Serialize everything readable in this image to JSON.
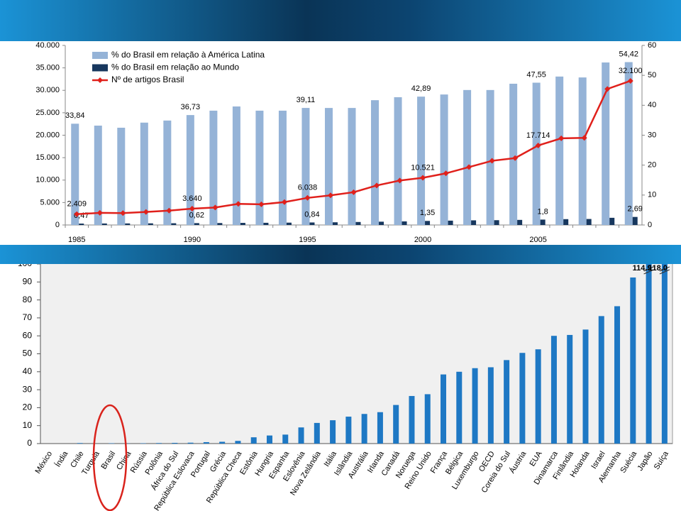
{
  "chart_data": [
    {
      "type": "bar_line",
      "categories": [
        "1985",
        null,
        null,
        null,
        null,
        "1990",
        null,
        null,
        null,
        null,
        "1995",
        null,
        null,
        null,
        null,
        "2000",
        null,
        null,
        null,
        null,
        "2005",
        null,
        null,
        null,
        null
      ],
      "series": [
        {
          "name": "% do Brasil em relação à América Latina",
          "type": "bar",
          "axis": "y2",
          "color": "#95b3d7",
          "values": [
            33.84,
            33.2,
            32.5,
            34.2,
            34.9,
            36.73,
            38.2,
            39.6,
            38.2,
            38.2,
            39.11,
            39.1,
            39.1,
            41.7,
            42.7,
            42.89,
            43.6,
            45.1,
            45.1,
            47.2,
            47.55,
            49.6,
            49.3,
            54.3,
            54.42
          ],
          "value_labels": [
            "33,84",
            null,
            null,
            null,
            null,
            "36,73",
            null,
            null,
            null,
            null,
            "39,11",
            null,
            null,
            null,
            null,
            "42,89",
            null,
            null,
            null,
            null,
            "47,55",
            null,
            null,
            null,
            "54,42"
          ]
        },
        {
          "name": "% do Brasil em relação ao Mundo",
          "type": "bar",
          "axis": "y2",
          "color": "#17375e",
          "values": [
            0.47,
            0.5,
            0.52,
            0.55,
            0.58,
            0.62,
            0.65,
            0.7,
            0.73,
            0.78,
            0.84,
            0.9,
            1.0,
            1.1,
            1.2,
            1.35,
            1.45,
            1.55,
            1.6,
            1.7,
            1.8,
            1.95,
            2.0,
            2.4,
            2.69
          ],
          "value_labels": [
            "0,47",
            null,
            null,
            null,
            null,
            "0,62",
            null,
            null,
            null,
            null,
            "0,84",
            null,
            null,
            null,
            null,
            "1,35",
            null,
            null,
            null,
            null,
            "1,8",
            null,
            null,
            null,
            "2,69"
          ]
        },
        {
          "name": "Nº de artigos Brasil",
          "type": "line",
          "axis": "y",
          "color": "#e0201b",
          "values": [
            2409,
            2700,
            2650,
            2900,
            3200,
            3640,
            3900,
            4700,
            4600,
            5100,
            6038,
            6600,
            7300,
            8800,
            9900,
            10521,
            11500,
            12900,
            14300,
            14900,
            17714,
            19300,
            19400,
            30300,
            32100
          ],
          "value_labels": [
            "2.409",
            null,
            null,
            null,
            null,
            "3.640",
            null,
            null,
            null,
            null,
            "6.038",
            null,
            null,
            null,
            null,
            "10.521",
            null,
            null,
            null,
            null,
            "17.714",
            null,
            null,
            null,
            "32.100"
          ]
        }
      ],
      "ylim": [
        0,
        40000
      ],
      "yticks": [
        0,
        {
          "value": 5000,
          "label": "5.000"
        },
        {
          "value": 10000,
          "label": "10.000"
        },
        {
          "value": 15000,
          "label": "15.000"
        },
        {
          "value": 20000,
          "label": "20.000"
        },
        {
          "value": 25000,
          "label": "25.000"
        },
        {
          "value": 30000,
          "label": "30.000"
        },
        {
          "value": 35000,
          "label": "35.000"
        },
        {
          "value": 40000,
          "label": "40.000"
        }
      ],
      "y2lim": [
        0,
        60
      ],
      "y2ticks": [
        0,
        10,
        20,
        30,
        40,
        50,
        60
      ],
      "legend": "upper left"
    },
    {
      "type": "bar",
      "categories": [
        "México",
        "Índia",
        "Chile",
        "Turquia",
        "Brasil",
        "China",
        "Rússia",
        "Polônia",
        "África do Sul",
        "República Eslovaca",
        "Portugal",
        "Grécia",
        "República Checa",
        "Estônia",
        "Hungria",
        "Espanha",
        "Eslovênia",
        "Nova Zelândia",
        "Itália",
        "Islândia",
        "Austrália",
        "Irlanda",
        "Canadá",
        "Noruega",
        "Reino Unido",
        "França",
        "Bélgica",
        "Luxemburgo",
        "OECD",
        "Coreia do Sul",
        "Áustria",
        "EUA",
        "Dinamarca",
        "Finlândia",
        "Holanda",
        "Israel",
        "Alemanha",
        "Suécia",
        "Japão",
        "Suíça"
      ],
      "values": [
        0,
        0,
        0.3,
        0,
        0.2,
        0.1,
        0.2,
        0.3,
        0.4,
        0.5,
        0.8,
        1,
        1.5,
        3.5,
        4.5,
        5,
        9,
        11.5,
        13,
        15,
        16.5,
        17.5,
        21.5,
        26.5,
        27.5,
        38.5,
        40,
        42,
        42.5,
        46.5,
        50.5,
        52.5,
        60,
        60.5,
        63.5,
        71,
        76.5,
        92.5,
        114.9,
        118.0
      ],
      "value_labels": [
        null,
        null,
        null,
        null,
        null,
        null,
        null,
        null,
        null,
        null,
        null,
        null,
        null,
        null,
        null,
        null,
        null,
        null,
        null,
        null,
        null,
        null,
        null,
        null,
        null,
        null,
        null,
        null,
        null,
        null,
        null,
        null,
        null,
        null,
        null,
        null,
        null,
        null,
        "114.9",
        "118.0"
      ],
      "color": "#1e78c4",
      "ylim": [
        0,
        100
      ],
      "yticks": [
        0,
        10,
        20,
        30,
        40,
        50,
        60,
        70,
        80,
        90,
        100
      ]
    }
  ]
}
